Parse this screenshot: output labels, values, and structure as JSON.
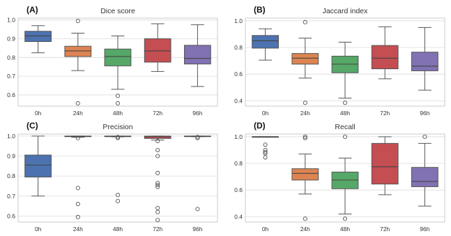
{
  "chart_data": [
    {
      "id": "A",
      "type": "box",
      "letter": "(A)",
      "title": "Dice score",
      "categories": [
        "0h",
        "24h",
        "48h",
        "72h",
        "96h"
      ],
      "ylim": [
        0.54,
        1.01
      ],
      "yticks": [
        0.6,
        0.7,
        0.8,
        0.9,
        1.0
      ],
      "ytick_labels": [
        "0.6",
        "0.7",
        "0.8",
        "0.9",
        "1.0"
      ],
      "grid": true,
      "boxes": [
        {
          "category": "0h",
          "color": "#4C72B0",
          "q1": 0.885,
          "median": 0.915,
          "q3": 0.94,
          "whisker_low": 0.825,
          "whisker_high": 0.97,
          "outliers": []
        },
        {
          "category": "24h",
          "color": "#DD8452",
          "q1": 0.805,
          "median": 0.835,
          "q3": 0.86,
          "whisker_low": 0.73,
          "whisker_high": 0.93,
          "outliers": [
            0.995,
            0.555
          ]
        },
        {
          "category": "48h",
          "color": "#55A868",
          "q1": 0.755,
          "median": 0.805,
          "q3": 0.845,
          "whisker_low": 0.63,
          "whisker_high": 0.915,
          "outliers": [
            0.595,
            0.555
          ]
        },
        {
          "category": "72h",
          "color": "#C44E52",
          "q1": 0.775,
          "median": 0.835,
          "q3": 0.9,
          "whisker_low": 0.725,
          "whisker_high": 0.98,
          "outliers": []
        },
        {
          "category": "96h",
          "color": "#8172B3",
          "q1": 0.765,
          "median": 0.795,
          "q3": 0.865,
          "whisker_low": 0.645,
          "whisker_high": 0.975,
          "outliers": []
        }
      ]
    },
    {
      "id": "B",
      "type": "box",
      "letter": "(B)",
      "title": "Jaccard index",
      "categories": [
        "0h",
        "24h",
        "48h",
        "72h",
        "96h"
      ],
      "ylim": [
        0.36,
        1.02
      ],
      "yticks": [
        0.4,
        0.6,
        0.8,
        1.0
      ],
      "ytick_labels": [
        "0.4",
        "0.6",
        "0.8",
        "1.0"
      ],
      "grid": true,
      "boxes": [
        {
          "category": "0h",
          "color": "#4C72B0",
          "q1": 0.795,
          "median": 0.85,
          "q3": 0.89,
          "whisker_low": 0.705,
          "whisker_high": 0.94,
          "outliers": []
        },
        {
          "category": "24h",
          "color": "#DD8452",
          "q1": 0.675,
          "median": 0.72,
          "q3": 0.755,
          "whisker_low": 0.57,
          "whisker_high": 0.87,
          "outliers": [
            0.99,
            0.385
          ]
        },
        {
          "category": "48h",
          "color": "#55A868",
          "q1": 0.61,
          "median": 0.675,
          "q3": 0.735,
          "whisker_low": 0.42,
          "whisker_high": 0.84,
          "outliers": [
            0.385
          ]
        },
        {
          "category": "72h",
          "color": "#C44E52",
          "q1": 0.64,
          "median": 0.72,
          "q3": 0.815,
          "whisker_low": 0.565,
          "whisker_high": 0.955,
          "outliers": []
        },
        {
          "category": "96h",
          "color": "#8172B3",
          "q1": 0.625,
          "median": 0.66,
          "q3": 0.765,
          "whisker_low": 0.48,
          "whisker_high": 0.95,
          "outliers": []
        }
      ]
    },
    {
      "id": "C",
      "type": "box",
      "letter": "(C)",
      "title": "Precision",
      "categories": [
        "0h",
        "24h",
        "48h",
        "72h",
        "96h"
      ],
      "ylim": [
        0.57,
        1.01
      ],
      "yticks": [
        0.6,
        0.7,
        0.8,
        0.9,
        1.0
      ],
      "ytick_labels": [
        "0.6",
        "0.7",
        "0.8",
        "0.9",
        "1.0"
      ],
      "grid": true,
      "boxes": [
        {
          "category": "0h",
          "color": "#4C72B0",
          "q1": 0.795,
          "median": 0.855,
          "q3": 0.905,
          "whisker_low": 0.7,
          "whisker_high": 1.0,
          "outliers": []
        },
        {
          "category": "24h",
          "color": "#DD8452",
          "q1": 0.997,
          "median": 0.999,
          "q3": 1.0,
          "whisker_low": 0.994,
          "whisker_high": 1.0,
          "outliers": [
            0.99,
            0.74,
            0.66,
            0.595
          ]
        },
        {
          "category": "48h",
          "color": "#55A868",
          "q1": 0.997,
          "median": 0.999,
          "q3": 1.0,
          "whisker_low": 0.996,
          "whisker_high": 1.0,
          "outliers": [
            0.995,
            0.99,
            0.705,
            0.675
          ]
        },
        {
          "category": "72h",
          "color": "#C44E52",
          "q1": 0.988,
          "median": 0.996,
          "q3": 1.0,
          "whisker_low": 0.98,
          "whisker_high": 1.0,
          "outliers": [
            0.975,
            0.93,
            0.9,
            0.815,
            0.765,
            0.755,
            0.745,
            0.64,
            0.62,
            0.58
          ]
        },
        {
          "category": "96h",
          "color": "#8172B3",
          "q1": 0.998,
          "median": 0.999,
          "q3": 1.0,
          "whisker_low": 0.997,
          "whisker_high": 1.0,
          "outliers": [
            0.995,
            0.99,
            0.635
          ]
        }
      ]
    },
    {
      "id": "D",
      "type": "box",
      "letter": "(D)",
      "title": "Recall",
      "categories": [
        "0h",
        "24h",
        "48h",
        "72h",
        "96h"
      ],
      "ylim": [
        0.36,
        1.02
      ],
      "yticks": [
        0.4,
        0.6,
        0.8,
        1.0
      ],
      "ytick_labels": [
        "0.4",
        "0.6",
        "0.8",
        "1.0"
      ],
      "grid": true,
      "boxes": [
        {
          "category": "0h",
          "color": "#4C72B0",
          "q1": 0.999,
          "median": 1.0,
          "q3": 1.0,
          "whisker_low": 0.998,
          "whisker_high": 1.0,
          "outliers": [
            0.94,
            0.9,
            0.885,
            0.875,
            0.845
          ]
        },
        {
          "category": "24h",
          "color": "#DD8452",
          "q1": 0.675,
          "median": 0.725,
          "q3": 0.76,
          "whisker_low": 0.57,
          "whisker_high": 0.87,
          "outliers": [
            1.0,
            0.99,
            0.385
          ]
        },
        {
          "category": "48h",
          "color": "#55A868",
          "q1": 0.61,
          "median": 0.675,
          "q3": 0.735,
          "whisker_low": 0.42,
          "whisker_high": 0.84,
          "outliers": [
            1.0,
            0.385
          ]
        },
        {
          "category": "72h",
          "color": "#C44E52",
          "q1": 0.645,
          "median": 0.775,
          "q3": 0.95,
          "whisker_low": 0.565,
          "whisker_high": 1.0,
          "outliers": []
        },
        {
          "category": "96h",
          "color": "#8172B3",
          "q1": 0.625,
          "median": 0.665,
          "q3": 0.77,
          "whisker_low": 0.48,
          "whisker_high": 0.95,
          "outliers": [
            1.0
          ]
        }
      ]
    }
  ]
}
